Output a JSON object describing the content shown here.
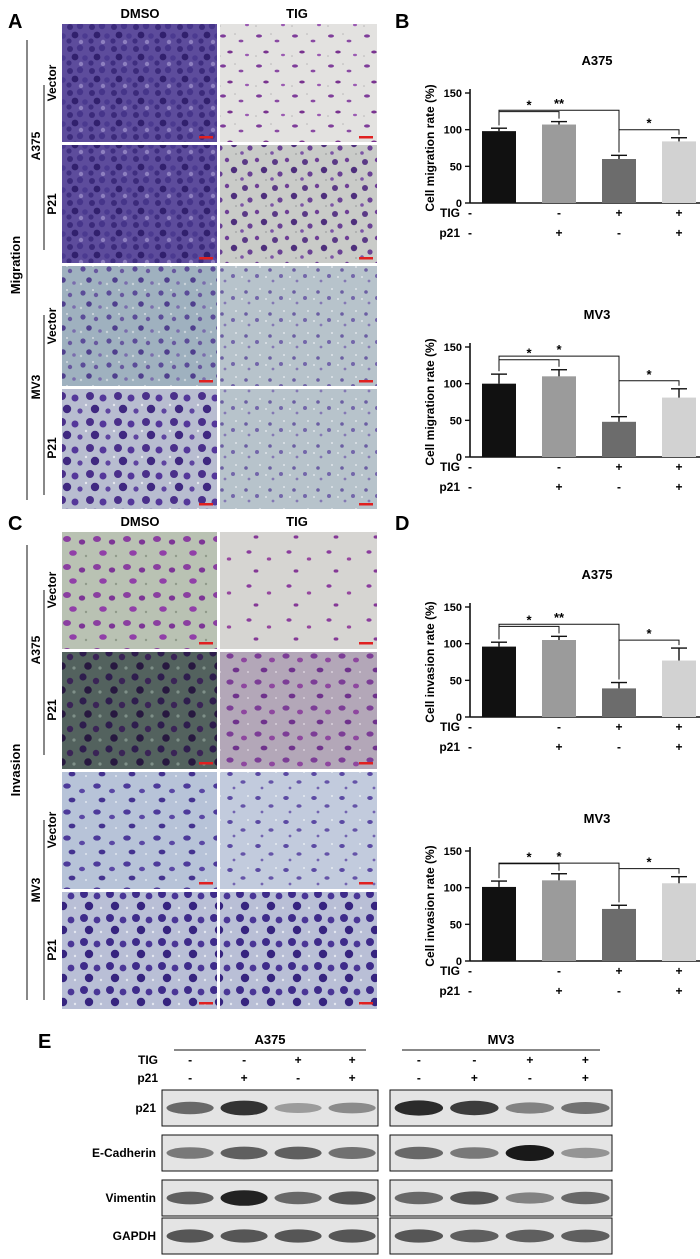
{
  "panels": {
    "A": "A",
    "B": "B",
    "C": "C",
    "D": "D",
    "E": "E"
  },
  "micro": {
    "col_labels": [
      "DMSO",
      "TIG"
    ],
    "row_labels": [
      "Vector",
      "P21",
      "Vector",
      "P21"
    ],
    "cell_lines": [
      "A375",
      "MV3"
    ],
    "sections": {
      "migration": "Migration",
      "invasion": "Invasion"
    }
  },
  "treatment": {
    "tig_label": "TIG",
    "p21_label": "p21",
    "tig": [
      "-",
      "-",
      "+",
      "+"
    ],
    "p21": [
      "-",
      "+",
      "-",
      "+"
    ]
  },
  "chart_data": [
    {
      "type": "bar",
      "panel": "B",
      "title": "A375",
      "ylabel": "Cell migration rate (%)",
      "categories": [
        "TIG- p21-",
        "TIG- p21+",
        "TIG+ p21-",
        "TIG+ p21+"
      ],
      "values": [
        98,
        107,
        60,
        84
      ],
      "errors": [
        4,
        4,
        5,
        5
      ],
      "ylim": [
        0,
        150
      ],
      "yticks": [
        0,
        50,
        100,
        150
      ],
      "colors": [
        "#111111",
        "#9b9b9b",
        "#6c6c6c",
        "#d2d2d2"
      ],
      "significance": [
        {
          "from": 0,
          "to": 1,
          "label": "*"
        },
        {
          "from": 0,
          "to": 2,
          "label": "**"
        },
        {
          "from": 2,
          "to": 3,
          "label": "*"
        }
      ]
    },
    {
      "type": "bar",
      "panel": "B",
      "title": "MV3",
      "ylabel": "Cell migration rate (%)",
      "categories": [
        "TIG- p21-",
        "TIG- p21+",
        "TIG+ p21-",
        "TIG+ p21+"
      ],
      "values": [
        100,
        110,
        48,
        81
      ],
      "errors": [
        13,
        9,
        7,
        12
      ],
      "ylim": [
        0,
        150
      ],
      "yticks": [
        0,
        50,
        100,
        150
      ],
      "colors": [
        "#111111",
        "#9b9b9b",
        "#6c6c6c",
        "#d2d2d2"
      ],
      "significance": [
        {
          "from": 0,
          "to": 1,
          "label": "*"
        },
        {
          "from": 0,
          "to": 2,
          "label": "*"
        },
        {
          "from": 2,
          "to": 3,
          "label": "*"
        }
      ]
    },
    {
      "type": "bar",
      "panel": "D",
      "title": "A375",
      "ylabel": "Cell invasion rate (%)",
      "categories": [
        "TIG- p21-",
        "TIG- p21+",
        "TIG+ p21-",
        "TIG+ p21+"
      ],
      "values": [
        96,
        105,
        39,
        77
      ],
      "errors": [
        6,
        5,
        8,
        17
      ],
      "ylim": [
        0,
        150
      ],
      "yticks": [
        0,
        50,
        100,
        150
      ],
      "colors": [
        "#111111",
        "#9b9b9b",
        "#6c6c6c",
        "#d2d2d2"
      ],
      "significance": [
        {
          "from": 0,
          "to": 1,
          "label": "*"
        },
        {
          "from": 0,
          "to": 2,
          "label": "**"
        },
        {
          "from": 2,
          "to": 3,
          "label": "*"
        }
      ]
    },
    {
      "type": "bar",
      "panel": "D",
      "title": "MV3",
      "ylabel": "Cell invasion rate (%)",
      "categories": [
        "TIG- p21-",
        "TIG- p21+",
        "TIG+ p21-",
        "TIG+ p21+"
      ],
      "values": [
        101,
        110,
        71,
        106
      ],
      "errors": [
        8,
        9,
        5,
        9
      ],
      "ylim": [
        0,
        150
      ],
      "yticks": [
        0,
        50,
        100,
        150
      ],
      "colors": [
        "#111111",
        "#9b9b9b",
        "#6c6c6c",
        "#d2d2d2"
      ],
      "significance": [
        {
          "from": 0,
          "to": 1,
          "label": "*"
        },
        {
          "from": 0,
          "to": 2,
          "label": "*"
        },
        {
          "from": 2,
          "to": 3,
          "label": "*"
        }
      ]
    }
  ],
  "western": {
    "groups": [
      "A375",
      "MV3"
    ],
    "rows": [
      "p21",
      "E-Cadherin",
      "Vimentin",
      "GAPDH"
    ],
    "band_intensity": {
      "p21": [
        [
          0.55,
          0.85,
          0.25,
          0.35
        ],
        [
          0.9,
          0.8,
          0.4,
          0.5
        ]
      ],
      "E-Cadherin": [
        [
          0.45,
          0.6,
          0.6,
          0.5
        ],
        [
          0.55,
          0.45,
          1.0,
          0.3
        ]
      ],
      "Vimentin": [
        [
          0.6,
          0.95,
          0.55,
          0.65
        ],
        [
          0.55,
          0.65,
          0.4,
          0.55
        ]
      ],
      "GAPDH": [
        [
          0.65,
          0.65,
          0.65,
          0.65
        ],
        [
          0.65,
          0.6,
          0.6,
          0.6
        ]
      ]
    }
  }
}
